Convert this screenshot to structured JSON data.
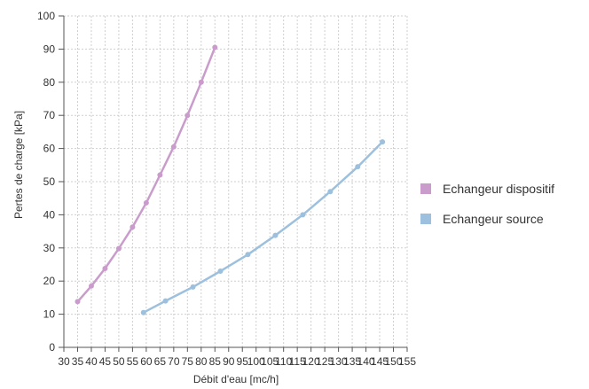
{
  "chart_data": {
    "type": "line",
    "xlabel": "Débit d'eau [mc/h]",
    "ylabel": "Pertes de charge [kPa]",
    "xlim": [
      30,
      155
    ],
    "ylim": [
      0,
      100
    ],
    "x_ticks": [
      "30",
      "35",
      "40",
      "45",
      "50",
      "55",
      "60",
      "65",
      "70",
      "75",
      "80",
      "85",
      "90",
      "95",
      "100",
      "105",
      "110",
      "115",
      "120",
      "125",
      "130",
      "135",
      "140",
      "145",
      "150",
      "155"
    ],
    "y_ticks": [
      "0",
      "10",
      "20",
      "30",
      "40",
      "50",
      "60",
      "70",
      "80",
      "90",
      "100"
    ],
    "grid": true,
    "legend_position": "right",
    "series": [
      {
        "name": "Echangeur dispositif",
        "color": "#c99ccc",
        "points": [
          [
            35,
            13.8
          ],
          [
            40,
            18.5
          ],
          [
            45,
            23.8
          ],
          [
            50,
            29.8
          ],
          [
            55,
            36.3
          ],
          [
            60,
            43.6
          ],
          [
            65,
            52.0
          ],
          [
            70,
            60.5
          ],
          [
            75,
            70.0
          ],
          [
            80,
            80.0
          ],
          [
            85,
            90.5
          ]
        ]
      },
      {
        "name": "Echangeur source",
        "color": "#9cc0dd",
        "points": [
          [
            59,
            10.5
          ],
          [
            67,
            14.0
          ],
          [
            77,
            18.2
          ],
          [
            87,
            23.0
          ],
          [
            97,
            28.0
          ],
          [
            107,
            33.8
          ],
          [
            117,
            40.0
          ],
          [
            127,
            47.0
          ],
          [
            137,
            54.5
          ],
          [
            146,
            62.0
          ]
        ]
      }
    ]
  }
}
